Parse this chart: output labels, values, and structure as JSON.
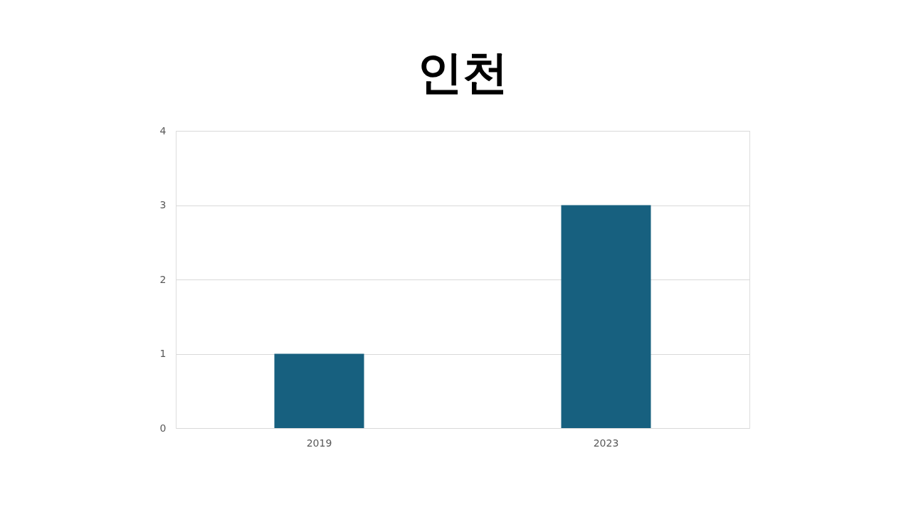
{
  "chart_data": {
    "type": "bar",
    "title": "인천",
    "categories": [
      "2019",
      "2023"
    ],
    "series": [
      {
        "color": "#17607f",
        "values": [
          1,
          3
        ]
      }
    ],
    "ylim": [
      0,
      4
    ],
    "yticks": [
      0,
      1,
      2,
      3,
      4
    ],
    "grid": "y",
    "legend": false
  }
}
